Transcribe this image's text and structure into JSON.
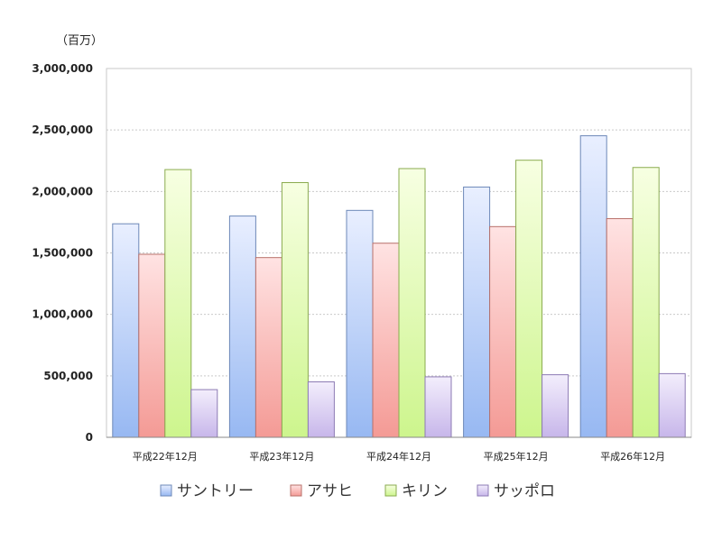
{
  "chart_data": {
    "type": "bar",
    "unit_label": "（百万）",
    "categories": [
      "平成22年12月",
      "平成23年12月",
      "平成24年12月",
      "平成25年12月",
      "平成26年12月"
    ],
    "series": [
      {
        "name": "サントリー",
        "values": [
          1737000,
          1800000,
          1846000,
          2036000,
          2453000
        ],
        "color_top": "#e9efff",
        "color_bottom": "#97b8f2",
        "stroke": "#6d88b8"
      },
      {
        "name": "アサヒ",
        "values": [
          1489000,
          1462000,
          1579000,
          1714000,
          1779000
        ],
        "color_top": "#ffe3e3",
        "color_bottom": "#f49a95",
        "stroke": "#b8706a"
      },
      {
        "name": "キリン",
        "values": [
          2178000,
          2072000,
          2186000,
          2254000,
          2195000
        ],
        "color_top": "#f7ffe2",
        "color_bottom": "#cdf58d",
        "stroke": "#8aab4f"
      },
      {
        "name": "サッポロ",
        "values": [
          388000,
          451000,
          492000,
          509000,
          518000
        ],
        "color_top": "#f3eefc",
        "color_bottom": "#c7b6ea",
        "stroke": "#8d7bb4"
      }
    ],
    "ylim": [
      0,
      3000000
    ],
    "yticks": [
      0,
      500000,
      1000000,
      1500000,
      2000000,
      2500000,
      3000000
    ],
    "ytick_labels": [
      "0",
      "500,000",
      "1,000,000",
      "1,500,000",
      "2,000,000",
      "2,500,000",
      "3,000,000"
    ],
    "grid": true,
    "legend_position": "bottom"
  }
}
